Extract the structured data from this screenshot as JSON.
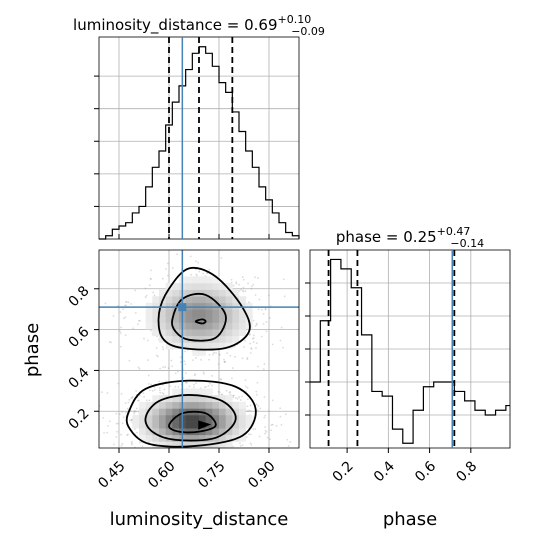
{
  "colors": {
    "truth": "#4682b4",
    "hist": "#000000",
    "grid": "#b0b0b0",
    "contour": "#000000",
    "scatter": "#9a9a9a"
  },
  "chart_data": [
    {
      "panel": "luminosity_distance-1d",
      "type": "step-histogram",
      "title_main": "luminosity_distance = 0.69",
      "title_sup": "+0.10",
      "title_sub": "−0.09",
      "xlim": [
        0.39,
        0.99
      ],
      "quantiles": [
        0.6,
        0.69,
        0.79
      ],
      "truth": 0.64,
      "ymax": 62,
      "bins": [
        0.39,
        0.41,
        0.43,
        0.45,
        0.47,
        0.49,
        0.51,
        0.53,
        0.55,
        0.57,
        0.59,
        0.61,
        0.63,
        0.65,
        0.67,
        0.69,
        0.71,
        0.73,
        0.75,
        0.77,
        0.79,
        0.81,
        0.83,
        0.85,
        0.87,
        0.89,
        0.91,
        0.93,
        0.95,
        0.97,
        0.99
      ],
      "counts": [
        0,
        1,
        3,
        4,
        5,
        8,
        10,
        16,
        22,
        27,
        35,
        42,
        47,
        52,
        57,
        59,
        57,
        53,
        48,
        45,
        39,
        33,
        27,
        22,
        16,
        12,
        8,
        5,
        2,
        1
      ]
    },
    {
      "panel": "joint-2d",
      "type": "density-contour",
      "xlim": [
        0.39,
        0.99
      ],
      "ylim": [
        0.02,
        0.99
      ],
      "xticks": [
        0.45,
        0.6,
        0.75,
        0.9
      ],
      "xtick_labels": [
        "0.45",
        "0.60",
        "0.75",
        "0.90"
      ],
      "yticks": [
        0.2,
        0.4,
        0.6,
        0.8
      ],
      "ytick_labels": [
        "0.2",
        "0.4",
        "0.6",
        "0.8"
      ],
      "xlabel": "luminosity_distance",
      "ylabel": "phase",
      "truth": [
        0.64,
        0.71
      ],
      "modes": [
        {
          "x": 0.67,
          "y": 0.15,
          "sx": 0.07,
          "sy": 0.06,
          "weight": 0.65
        },
        {
          "x": 0.69,
          "y": 0.67,
          "sx": 0.07,
          "sy": 0.08,
          "weight": 0.35
        }
      ],
      "contours": [
        {
          "level": "inner",
          "rings": [
            [
              [
                0.6,
                0.13
              ],
              [
                0.64,
                0.19
              ],
              [
                0.71,
                0.19
              ],
              [
                0.74,
                0.13
              ],
              [
                0.69,
                0.1
              ],
              [
                0.63,
                0.1
              ]
            ],
            [
              [
                0.7,
                0.63
              ],
              [
                0.71,
                0.64
              ],
              [
                0.7,
                0.65
              ],
              [
                0.68,
                0.64
              ]
            ]
          ]
        },
        {
          "level": "middle",
          "rings": [
            [
              [
                0.53,
                0.17
              ],
              [
                0.57,
                0.25
              ],
              [
                0.66,
                0.28
              ],
              [
                0.76,
                0.25
              ],
              [
                0.8,
                0.16
              ],
              [
                0.74,
                0.07
              ],
              [
                0.62,
                0.06
              ],
              [
                0.55,
                0.1
              ]
            ],
            [
              [
                0.61,
                0.65
              ],
              [
                0.64,
                0.75
              ],
              [
                0.71,
                0.77
              ],
              [
                0.77,
                0.67
              ],
              [
                0.74,
                0.56
              ],
              [
                0.66,
                0.55
              ],
              [
                0.62,
                0.59
              ]
            ]
          ]
        },
        {
          "level": "outer",
          "rings": [
            [
              [
                0.48,
                0.2
              ],
              [
                0.53,
                0.31
              ],
              [
                0.66,
                0.35
              ],
              [
                0.8,
                0.32
              ],
              [
                0.86,
                0.21
              ],
              [
                0.82,
                0.08
              ],
              [
                0.68,
                0.03
              ],
              [
                0.54,
                0.04
              ],
              [
                0.48,
                0.12
              ]
            ],
            [
              [
                0.57,
                0.68
              ],
              [
                0.6,
                0.8
              ],
              [
                0.66,
                0.9
              ],
              [
                0.74,
                0.86
              ],
              [
                0.82,
                0.71
              ],
              [
                0.84,
                0.59
              ],
              [
                0.77,
                0.51
              ],
              [
                0.64,
                0.51
              ],
              [
                0.58,
                0.56
              ]
            ]
          ]
        }
      ]
    },
    {
      "panel": "phase-1d",
      "type": "step-histogram",
      "title_main": "phase = 0.25",
      "title_sup": "+0.47",
      "title_sub": "−0.14",
      "xlim": [
        0.02,
        0.99
      ],
      "xticks": [
        0.2,
        0.4,
        0.6,
        0.8
      ],
      "xtick_labels": [
        "0.2",
        "0.4",
        "0.6",
        "0.8"
      ],
      "xlabel": "phase",
      "quantiles": [
        0.11,
        0.25,
        0.72
      ],
      "truth": 0.71,
      "ymax": 42,
      "bins": [
        0.02,
        0.07,
        0.12,
        0.17,
        0.22,
        0.27,
        0.32,
        0.37,
        0.42,
        0.47,
        0.52,
        0.57,
        0.62,
        0.67,
        0.72,
        0.77,
        0.82,
        0.87,
        0.92,
        0.97,
        0.99
      ],
      "counts": [
        14,
        27,
        40,
        38,
        34,
        24,
        12,
        11,
        4,
        1,
        8,
        13,
        14,
        14,
        12,
        10,
        8,
        7,
        8,
        9
      ]
    }
  ]
}
